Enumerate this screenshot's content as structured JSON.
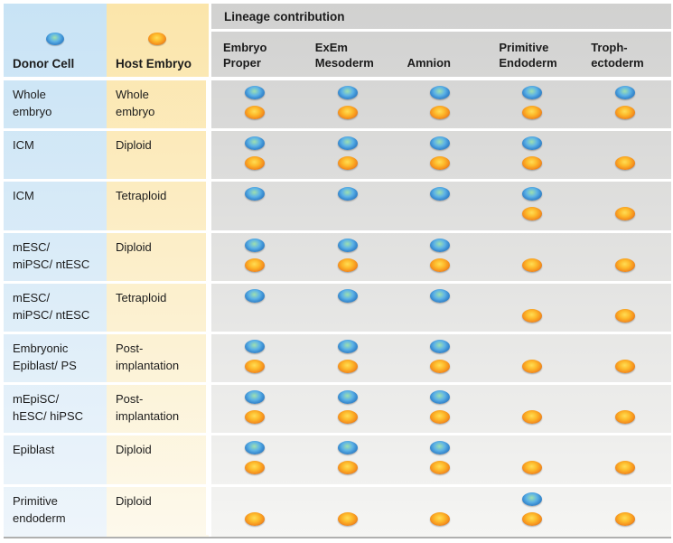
{
  "table": {
    "header": {
      "donor_label": "Donor Cell",
      "donor_icon": "blue-oval-icon",
      "host_label": "Host Embryo",
      "host_icon": "orange-oval-icon",
      "lineage_title": "Lineage contribution",
      "lineage_columns": [
        "Embryo\nProper",
        "ExEm\nMesoderm",
        "Amnion",
        "Primitive\nEndoderm",
        "Troph-\nectoderm"
      ]
    },
    "rows": [
      {
        "donor": "Whole\nembryo",
        "host": "Whole\nembryo",
        "contributions": [
          "both",
          "both",
          "both",
          "both",
          "both"
        ]
      },
      {
        "donor": "ICM",
        "host": "Diploid",
        "contributions": [
          "both",
          "both",
          "both",
          "both",
          "orange"
        ]
      },
      {
        "donor": "ICM",
        "host": "Tetraploid",
        "contributions": [
          "blue",
          "blue",
          "blue",
          "both",
          "orange"
        ]
      },
      {
        "donor": "mESC/\nmiPSC/ ntESC",
        "host": "Diploid",
        "contributions": [
          "both",
          "both",
          "both",
          "orange",
          "orange"
        ]
      },
      {
        "donor": "mESC/\nmiPSC/ ntESC",
        "host": "Tetraploid",
        "contributions": [
          "blue",
          "blue",
          "blue",
          "orange",
          "orange"
        ]
      },
      {
        "donor": "Embryonic\nEpiblast/ PS",
        "host": "Post-\nimplantation",
        "contributions": [
          "both",
          "both",
          "both",
          "orange",
          "orange"
        ]
      },
      {
        "donor": "mEpiSC/\nhESC/ hiPSC",
        "host": "Post-\nimplantation",
        "contributions": [
          "both",
          "both",
          "both",
          "orange",
          "orange"
        ]
      },
      {
        "donor": "Epiblast",
        "host": "Diploid",
        "contributions": [
          "both",
          "both",
          "both",
          "orange",
          "orange"
        ]
      },
      {
        "donor": "Primitive\nendoderm",
        "host": "Diploid",
        "contributions": [
          "orange",
          "orange",
          "orange",
          "both",
          "orange"
        ]
      }
    ],
    "colors": {
      "donor_dot": "#3a8cd0",
      "host_dot": "#f5911e",
      "donor_column_bg": "#c8e3f5",
      "host_column_bg": "#fbe5aa",
      "lineage_bg": "#d1d1d0"
    }
  }
}
